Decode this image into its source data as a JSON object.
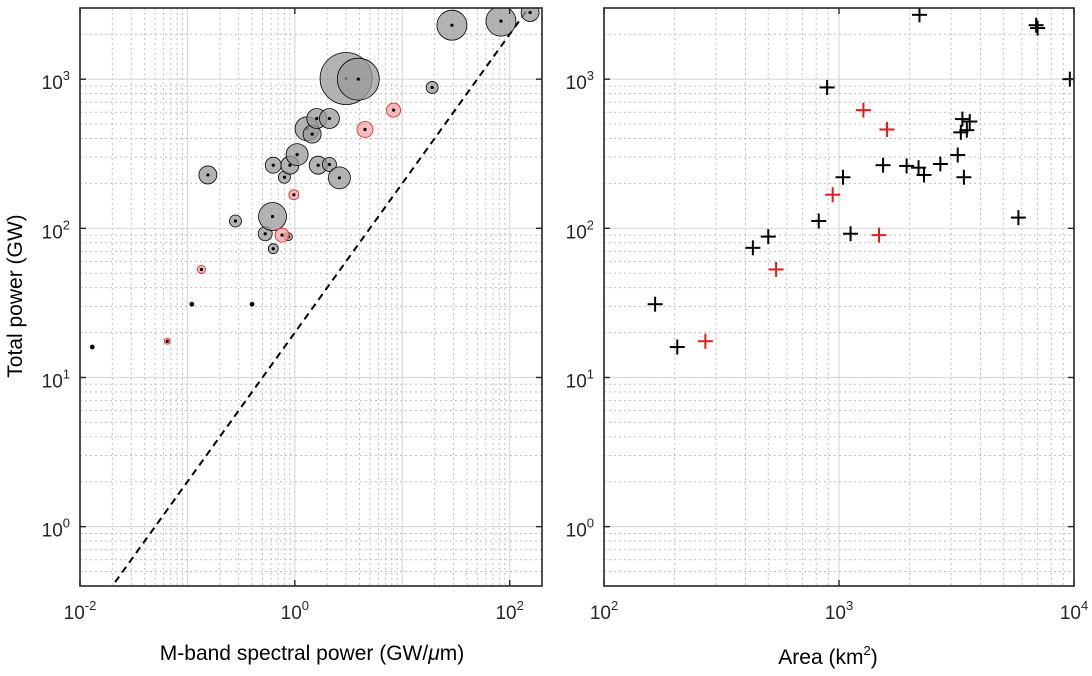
{
  "chart_data": [
    {
      "type": "scatter",
      "xscale": "log",
      "yscale": "log",
      "xlabel": "M-band spectral power (GW/",
      "xlabel_mu": "μ",
      "xlabel_end": "m)",
      "ylabel": "Total power (GW)",
      "xlim": [
        0.01,
        200
      ],
      "ylim": [
        0.4,
        3000
      ],
      "xticks": [
        0.01,
        1,
        100
      ],
      "xtick_labels": [
        {
          "base": "10",
          "exp": "-2"
        },
        {
          "base": "10",
          "exp": "0"
        },
        {
          "base": "10",
          "exp": "2"
        }
      ],
      "yticks": [
        1,
        10,
        100,
        1000
      ],
      "ytick_labels": [
        {
          "base": "10",
          "exp": "0"
        },
        {
          "base": "10",
          "exp": "1"
        },
        {
          "base": "10",
          "exp": "2"
        },
        {
          "base": "10",
          "exp": "3"
        }
      ],
      "reference_line": "y = 20x",
      "grid": true,
      "series": [
        {
          "name": "black",
          "color": "#000000",
          "fill": "#999999",
          "points": [
            {
              "x": 0.013,
              "y": 16,
              "size": 2
            },
            {
              "x": 0.11,
              "y": 31,
              "size": 2
            },
            {
              "x": 0.155,
              "y": 228,
              "size": 9
            },
            {
              "x": 0.28,
              "y": 112,
              "size": 6
            },
            {
              "x": 0.4,
              "y": 31,
              "size": 2
            },
            {
              "x": 0.53,
              "y": 92,
              "size": 7
            },
            {
              "x": 0.63,
              "y": 73,
              "size": 5
            },
            {
              "x": 0.62,
              "y": 120,
              "size": 14
            },
            {
              "x": 0.63,
              "y": 265,
              "size": 8
            },
            {
              "x": 0.8,
              "y": 220,
              "size": 6
            },
            {
              "x": 0.87,
              "y": 88,
              "size": 4
            },
            {
              "x": 0.9,
              "y": 265,
              "size": 9
            },
            {
              "x": 1.05,
              "y": 312,
              "size": 11
            },
            {
              "x": 1.3,
              "y": 465,
              "size": 12
            },
            {
              "x": 1.45,
              "y": 428,
              "size": 9
            },
            {
              "x": 1.6,
              "y": 545,
              "size": 10
            },
            {
              "x": 1.65,
              "y": 265,
              "size": 9
            },
            {
              "x": 2.1,
              "y": 268,
              "size": 7
            },
            {
              "x": 2.1,
              "y": 545,
              "size": 10
            },
            {
              "x": 2.6,
              "y": 218,
              "size": 11
            },
            {
              "x": 3.0,
              "y": 1010,
              "size": 26
            },
            {
              "x": 3.9,
              "y": 1000,
              "size": 21
            },
            {
              "x": 19,
              "y": 880,
              "size": 6
            },
            {
              "x": 29,
              "y": 2300,
              "size": 15
            },
            {
              "x": 83,
              "y": 2450,
              "size": 15
            },
            {
              "x": 155,
              "y": 2800,
              "size": 9
            }
          ]
        },
        {
          "name": "red",
          "color": "#e31a1c",
          "fill": "#f4a6a6",
          "points": [
            {
              "x": 0.065,
              "y": 17.5,
              "size": 3
            },
            {
              "x": 0.135,
              "y": 53,
              "size": 4
            },
            {
              "x": 0.76,
              "y": 90,
              "size": 7
            },
            {
              "x": 0.98,
              "y": 168,
              "size": 5
            },
            {
              "x": 4.5,
              "y": 460,
              "size": 8
            },
            {
              "x": 8.3,
              "y": 620,
              "size": 7
            }
          ]
        }
      ]
    },
    {
      "type": "scatter",
      "marker": "+",
      "xscale": "log",
      "yscale": "log",
      "xlabel": "Area (km",
      "xlabel_sup": "2",
      "xlabel_end": ")",
      "xlim": [
        100,
        10000
      ],
      "ylim": [
        0.4,
        3000
      ],
      "xticks": [
        100,
        1000,
        10000
      ],
      "xtick_labels": [
        {
          "base": "10",
          "exp": "2"
        },
        {
          "base": "10",
          "exp": "3"
        },
        {
          "base": "10",
          "exp": "4"
        }
      ],
      "yticks": [
        1,
        10,
        100,
        1000
      ],
      "ytick_labels": [
        {
          "base": "10",
          "exp": "0"
        },
        {
          "base": "10",
          "exp": "1"
        },
        {
          "base": "10",
          "exp": "2"
        },
        {
          "base": "10",
          "exp": "3"
        }
      ],
      "grid": true,
      "series": [
        {
          "name": "black",
          "color": "#000000",
          "points": [
            {
              "x": 165,
              "y": 31
            },
            {
              "x": 205,
              "y": 16
            },
            {
              "x": 430,
              "y": 74
            },
            {
              "x": 500,
              "y": 88
            },
            {
              "x": 820,
              "y": 112
            },
            {
              "x": 890,
              "y": 880
            },
            {
              "x": 1040,
              "y": 220
            },
            {
              "x": 1120,
              "y": 92
            },
            {
              "x": 1540,
              "y": 265
            },
            {
              "x": 1940,
              "y": 262
            },
            {
              "x": 2180,
              "y": 255
            },
            {
              "x": 2200,
              "y": 2700
            },
            {
              "x": 2300,
              "y": 228
            },
            {
              "x": 2700,
              "y": 270
            },
            {
              "x": 3200,
              "y": 310
            },
            {
              "x": 3300,
              "y": 440
            },
            {
              "x": 3350,
              "y": 540
            },
            {
              "x": 3400,
              "y": 220
            },
            {
              "x": 3500,
              "y": 455
            },
            {
              "x": 3600,
              "y": 520
            },
            {
              "x": 5800,
              "y": 118
            },
            {
              "x": 6900,
              "y": 2300
            },
            {
              "x": 7000,
              "y": 2200
            },
            {
              "x": 9600,
              "y": 1000
            }
          ]
        },
        {
          "name": "red",
          "color": "#e31a1c",
          "points": [
            {
              "x": 270,
              "y": 17.5
            },
            {
              "x": 540,
              "y": 53
            },
            {
              "x": 940,
              "y": 168
            },
            {
              "x": 1270,
              "y": 620
            },
            {
              "x": 1480,
              "y": 90
            },
            {
              "x": 1600,
              "y": 460
            }
          ]
        }
      ]
    }
  ]
}
